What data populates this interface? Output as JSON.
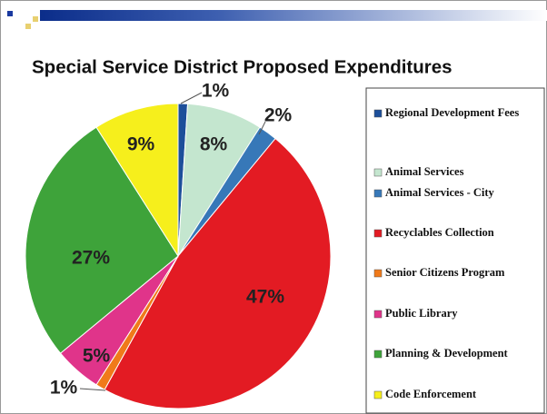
{
  "chart_data": {
    "type": "pie",
    "title": "Special Service District Proposed Expenditures",
    "categories": [
      "Regional Development Fees",
      "Animal Services",
      "Animal Services - City",
      "Recyclables Collection",
      "Senior Citizens Program",
      "Public Library",
      "Planning & Development",
      "Code Enforcement"
    ],
    "values": [
      1,
      8,
      2,
      47,
      1,
      5,
      27,
      9
    ],
    "value_labels": [
      "1%",
      "8%",
      "2%",
      "47%",
      "1%",
      "5%",
      "27%",
      "9%"
    ],
    "colors": [
      "#1d4f9a",
      "#c4e6cf",
      "#3778b8",
      "#e31b23",
      "#f07a1a",
      "#e0348a",
      "#3ea33a",
      "#f6ef1c"
    ]
  }
}
